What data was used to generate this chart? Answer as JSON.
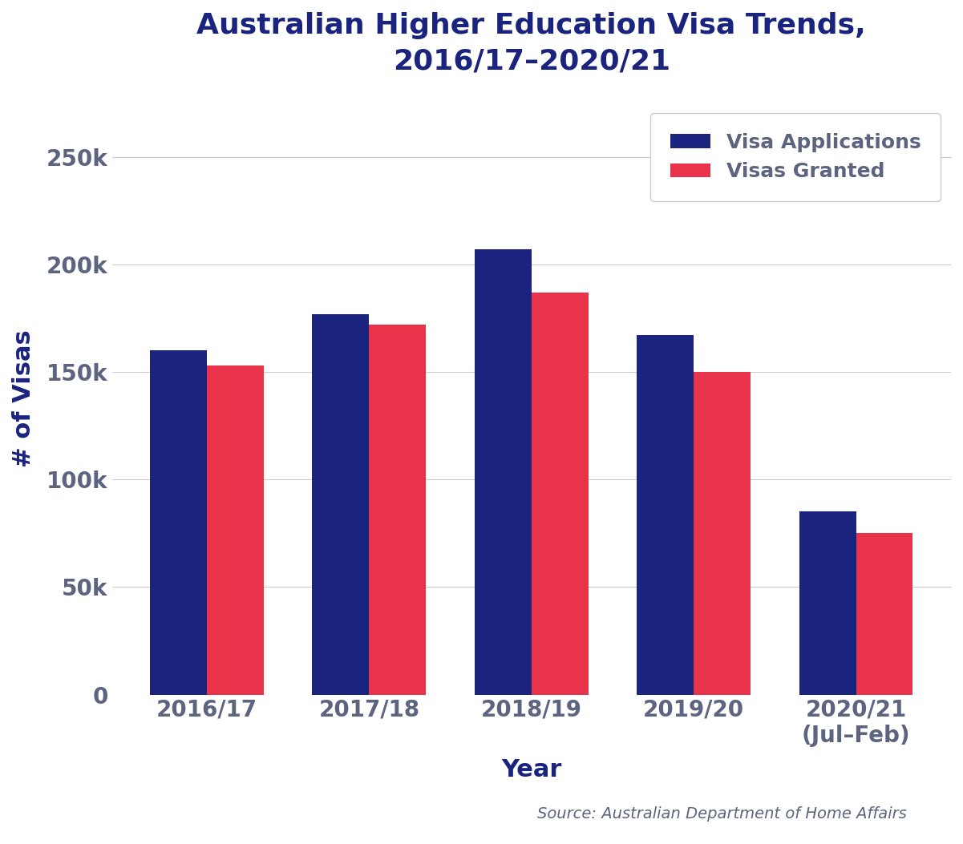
{
  "title": "Australian Higher Education Visa Trends,\n2016/17–2020/21",
  "xlabel": "Year",
  "ylabel": "# of Visas",
  "categories": [
    "2016/17",
    "2017/18",
    "2018/19",
    "2019/20",
    "2020/21\n(Jul–Feb)"
  ],
  "visa_applications": [
    160000,
    177000,
    207000,
    167000,
    85000
  ],
  "visas_granted": [
    153000,
    172000,
    187000,
    150000,
    75000
  ],
  "bar_color_applications": "#1a237e",
  "bar_color_granted": "#e8334a",
  "ylim": [
    0,
    275000
  ],
  "yticks": [
    0,
    50000,
    100000,
    150000,
    200000,
    250000
  ],
  "ytick_labels": [
    "0",
    "50k",
    "100k",
    "150k",
    "200k",
    "250k"
  ],
  "legend_labels": [
    "Visa Applications",
    "Visas Granted"
  ],
  "source_text": "Source: Australian Department of Home Affairs",
  "title_color": "#1a237e",
  "axis_color": "#5c6480",
  "grid_color": "#cccccc",
  "background_color": "#ffffff",
  "title_fontsize": 26,
  "label_fontsize": 22,
  "tick_fontsize": 20,
  "legend_fontsize": 18,
  "source_fontsize": 14,
  "bar_width": 0.35
}
